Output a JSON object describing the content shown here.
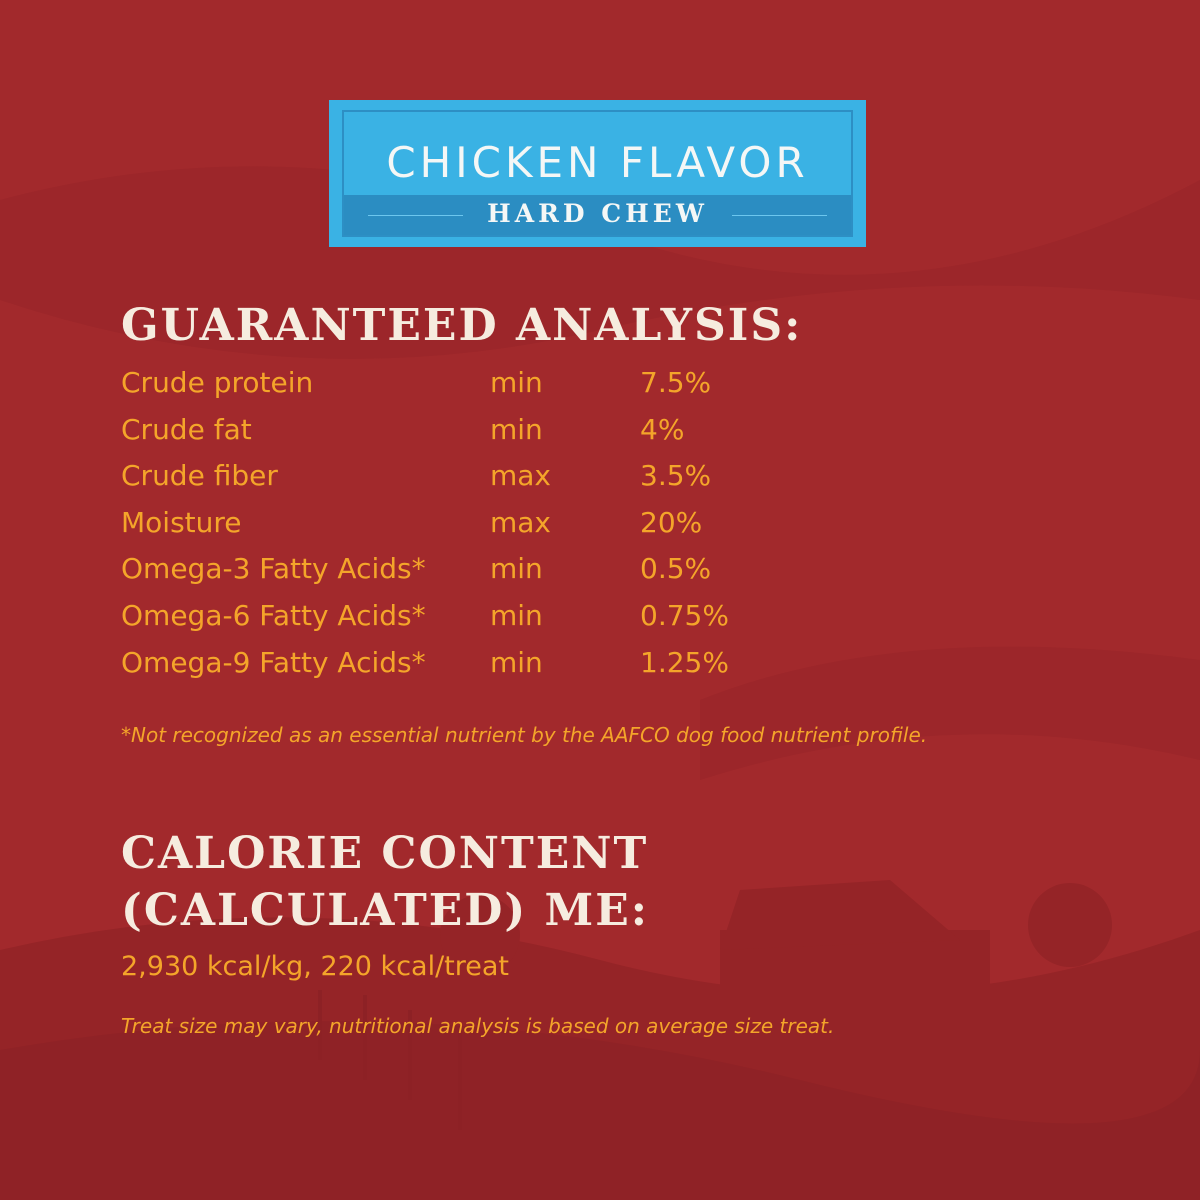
{
  "colors": {
    "background": "#a2292c",
    "accent_orange": "#f4a52a",
    "heading_cream": "#f6ecdf",
    "badge_blue": "#3ab2e4",
    "badge_dark_blue": "#2b8dc2"
  },
  "badge": {
    "title": "CHICKEN FLAVOR",
    "subtitle": "HARD CHEW"
  },
  "analysis": {
    "heading": "GUARANTEED ANALYSIS:",
    "rows": [
      {
        "nutrient": "Crude protein",
        "qualifier": "min",
        "value": "7.5%"
      },
      {
        "nutrient": "Crude fat",
        "qualifier": "min",
        "value": "4%"
      },
      {
        "nutrient": "Crude fiber",
        "qualifier": "max",
        "value": "3.5%"
      },
      {
        "nutrient": "Moisture",
        "qualifier": "max",
        "value": "20%"
      },
      {
        "nutrient": "Omega-3 Fatty Acids*",
        "qualifier": "min",
        "value": "0.5%"
      },
      {
        "nutrient": "Omega-6 Fatty Acids*",
        "qualifier": "min",
        "value": "0.75%"
      },
      {
        "nutrient": "Omega-9 Fatty Acids*",
        "qualifier": "min",
        "value": "1.25%"
      }
    ],
    "footnote": "*Not recognized as an essential nutrient by the AAFCO dog food nutrient profile."
  },
  "calorie": {
    "heading_line1": "CALORIE CONTENT",
    "heading_line2": "(CALCULATED) ME:",
    "value": "2,930 kcal/kg, 220 kcal/treat",
    "note": "Treat size may vary, nutritional analysis is based on average size treat."
  }
}
